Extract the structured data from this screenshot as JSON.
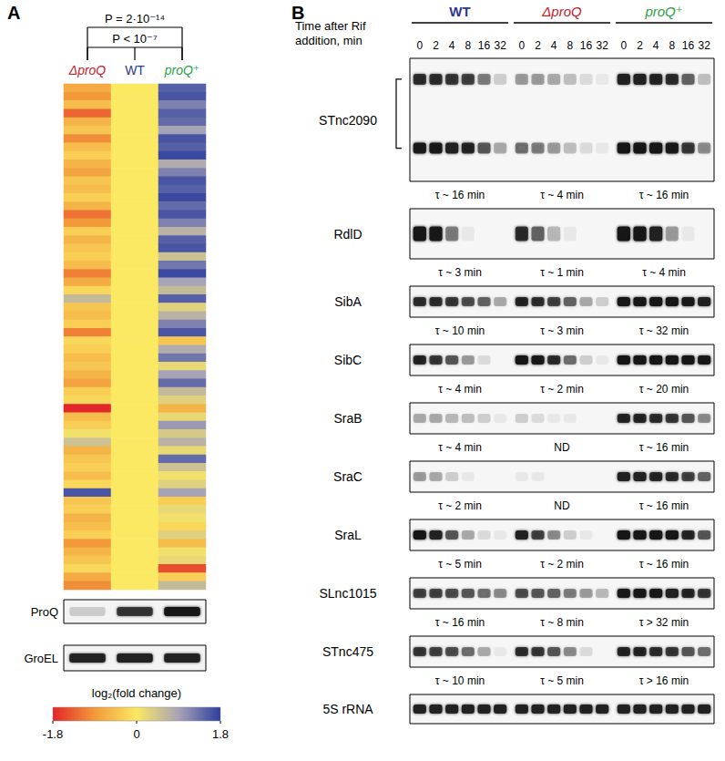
{
  "chart_data": {
    "type": "heatmap",
    "series": [
      {
        "name": "ΔproQ",
        "color": "#be1e2d",
        "values": [
          -0.7,
          -0.9,
          -0.5,
          -1.3,
          -0.6,
          -0.4,
          -1.0,
          -0.5,
          -0.3,
          -0.6,
          -0.8,
          -0.4,
          -0.5,
          -0.3,
          -0.6,
          -1.2,
          -0.9,
          -0.3,
          -0.6,
          -0.4,
          -0.3,
          -0.5,
          -1.1,
          -0.7,
          -0.2,
          0.6,
          -0.4,
          -0.5,
          -0.3,
          -1.1,
          -0.2,
          -0.3,
          -0.5,
          -0.4,
          -0.6,
          -0.8,
          -0.3,
          -0.2,
          -1.8,
          -0.5,
          -0.3,
          0.1,
          0.5,
          -0.6,
          -0.4,
          -0.3,
          -0.5,
          -0.2,
          1.6,
          -0.4,
          -0.3,
          -0.6,
          -0.5,
          -0.3,
          -0.9,
          -0.6,
          -0.4,
          -0.2,
          -0.7,
          -1.0
        ]
      },
      {
        "name": "WT",
        "color": "#2b3990",
        "values": [
          0,
          0,
          0,
          0,
          0,
          0,
          0,
          0,
          0,
          0,
          0,
          0,
          0,
          0,
          0,
          0,
          0,
          0,
          0,
          0,
          0,
          0,
          0,
          0,
          0,
          0,
          0,
          0,
          0,
          0,
          0,
          0,
          0,
          0,
          0,
          0,
          0,
          0,
          0,
          0,
          0,
          0,
          0,
          0,
          0,
          0,
          0,
          0,
          0,
          0,
          0,
          0,
          0,
          0,
          0,
          0,
          0,
          0,
          0,
          0
        ]
      },
      {
        "name": "proQ⁺",
        "color": "#2e9e48",
        "values": [
          1.5,
          1.6,
          1.2,
          1.5,
          1.4,
          0.9,
          1.6,
          1.5,
          1.7,
          0.8,
          1.2,
          1.6,
          1.5,
          1.7,
          1.4,
          1.6,
          1.2,
          0.7,
          1.5,
          1.6,
          0.5,
          1.3,
          1.7,
          0.9,
          0.6,
          1.5,
          0.3,
          0.7,
          1.2,
          1.6,
          -0.4,
          0.8,
          1.3,
          0.2,
          0.9,
          1.4,
          0.6,
          0.3,
          -0.6,
          0.2,
          1.0,
          0.4,
          0.7,
          0.2,
          1.4,
          0.5,
          0.1,
          0.3,
          0.9,
          -0.3,
          0.2,
          0.1,
          -0.2,
          0.3,
          -0.5,
          0.1,
          0.2,
          -1.5,
          -0.3,
          0.6
        ]
      }
    ],
    "colorbar": {
      "label": "log₂(fold change)",
      "range": [
        -1.8,
        1.8
      ],
      "ticks": [
        -1.8,
        0,
        1.8
      ],
      "colors": [
        "#e3262a",
        "#f29a3a",
        "#fbe863",
        "#a7a3b6",
        "#2e3e9e"
      ]
    },
    "annotations": [
      {
        "text": "P = 2·10⁻¹⁴",
        "columns": [
          "ΔproQ",
          "proQ⁺"
        ]
      },
      {
        "text": "P < 10⁻⁷",
        "columns": [
          "ΔproQ",
          "WT",
          "proQ⁺"
        ]
      }
    ],
    "tick_labels": "x"
  },
  "panel_labels": [
    "A",
    "B"
  ],
  "western_blot": {
    "rows": [
      {
        "name": "ProQ",
        "intensity": [
          0.15,
          0.75,
          1.0
        ]
      },
      {
        "name": "GroEL",
        "intensity": [
          0.9,
          0.9,
          0.9
        ]
      }
    ]
  },
  "northern_blot": {
    "header": [
      "Time after Rif",
      "addition, min"
    ],
    "strains": [
      {
        "name": "WT",
        "color": "#2b3990"
      },
      {
        "name": "ΔproQ",
        "color": "#be1e2d"
      },
      {
        "name": "proQ⁺",
        "color": "#2e9e48"
      }
    ],
    "times": [
      0,
      2,
      4,
      8,
      16,
      32
    ],
    "rows": [
      {
        "name": "STnc2090",
        "bands": [
          [
            0.8,
            0.8,
            0.75,
            0.7,
            0.45,
            0.15,
            0.35,
            0.35,
            0.3,
            0.2,
            0.1,
            0.05,
            0.9,
            0.9,
            0.85,
            0.8,
            0.55,
            0.2
          ],
          [
            0.95,
            0.95,
            0.9,
            0.85,
            0.6,
            0.3,
            0.5,
            0.45,
            0.35,
            0.2,
            0.1,
            0.05,
            1,
            1,
            1,
            0.95,
            0.75,
            0.4
          ]
        ],
        "half_lives": [
          "τ ~ 16 min",
          "τ ~ 4 min",
          "τ ~ 16 min"
        ]
      },
      {
        "name": "RdlD",
        "bands": [
          [
            1,
            0.95,
            0.45,
            0.05,
            0,
            0,
            0.8,
            0.55,
            0.25,
            0.05,
            0,
            0,
            1,
            1,
            0.9,
            0.35,
            0.05,
            0
          ]
        ],
        "half_lives": [
          "τ ~ 3 min",
          "τ ~ 1 min",
          "τ ~ 4 min"
        ]
      },
      {
        "name": "SibA",
        "bands": [
          [
            0.8,
            0.8,
            0.75,
            0.65,
            0.55,
            0.3,
            0.85,
            0.8,
            0.7,
            0.55,
            0.3,
            0.15,
            1,
            1,
            1,
            1,
            0.95,
            0.9
          ]
        ],
        "half_lives": [
          "τ ~ 10 min",
          "τ ~ 3 min",
          "τ ~ 32 min"
        ]
      },
      {
        "name": "SibC",
        "bands": [
          [
            0.85,
            0.75,
            0.6,
            0.35,
            0.1,
            0,
            1,
            0.95,
            0.8,
            0.5,
            0.15,
            0.05,
            1,
            1,
            1,
            1,
            1,
            0.95
          ]
        ],
        "half_lives": [
          "τ ~ 4 min",
          "τ ~ 2 min",
          "τ ~ 20 min"
        ]
      },
      {
        "name": "SraB",
        "bands": [
          [
            0.3,
            0.3,
            0.25,
            0.2,
            0.15,
            0.05,
            0.15,
            0.1,
            0.05,
            0.05,
            0,
            0,
            0.85,
            0.85,
            0.8,
            0.75,
            0.6,
            0.4
          ]
        ],
        "half_lives": [
          "τ ~ 4 min",
          "ND",
          "τ ~ 16 min"
        ]
      },
      {
        "name": "SraC",
        "bands": [
          [
            0.35,
            0.3,
            0.15,
            0.05,
            0,
            0,
            0.05,
            0.05,
            0,
            0,
            0,
            0,
            0.9,
            0.9,
            0.85,
            0.8,
            0.7,
            0.55
          ]
        ],
        "half_lives": [
          "τ ~ 2 min",
          "ND",
          "τ ~ 16 min"
        ]
      },
      {
        "name": "SraL",
        "bands": [
          [
            1,
            0.9,
            0.6,
            0.3,
            0.1,
            0.05,
            0.9,
            0.7,
            0.4,
            0.15,
            0.05,
            0,
            1,
            1,
            1,
            1,
            0.85,
            0.6
          ]
        ],
        "half_lives": [
          "τ ~ 5 min",
          "τ ~ 2 min",
          "τ ~ 16 min"
        ]
      },
      {
        "name": "SLnc1015",
        "bands": [
          [
            0.7,
            0.7,
            0.65,
            0.6,
            0.5,
            0.4,
            0.65,
            0.6,
            0.55,
            0.45,
            0.35,
            0.25,
            0.95,
            0.95,
            0.95,
            0.9,
            0.85,
            0.75
          ]
        ],
        "half_lives": [
          "τ ~ 16 min",
          "τ ~ 8 min",
          "τ > 32 min"
        ]
      },
      {
        "name": "STnc475",
        "bands": [
          [
            0.75,
            0.7,
            0.65,
            0.5,
            0.3,
            0.05,
            0.8,
            0.75,
            0.6,
            0.4,
            0.1,
            0,
            0.85,
            0.85,
            0.8,
            0.75,
            0.6,
            0.5
          ]
        ],
        "half_lives": [
          "τ ~ 10 min",
          "τ ~ 5 min",
          "τ > 16 min"
        ]
      },
      {
        "name": "5S rRNA",
        "bands": [
          [
            0.9,
            0.9,
            0.9,
            0.9,
            0.9,
            0.9,
            0.9,
            0.9,
            0.9,
            0.9,
            0.9,
            0.9,
            0.9,
            0.9,
            0.9,
            0.9,
            0.9,
            0.9
          ]
        ]
      }
    ]
  }
}
